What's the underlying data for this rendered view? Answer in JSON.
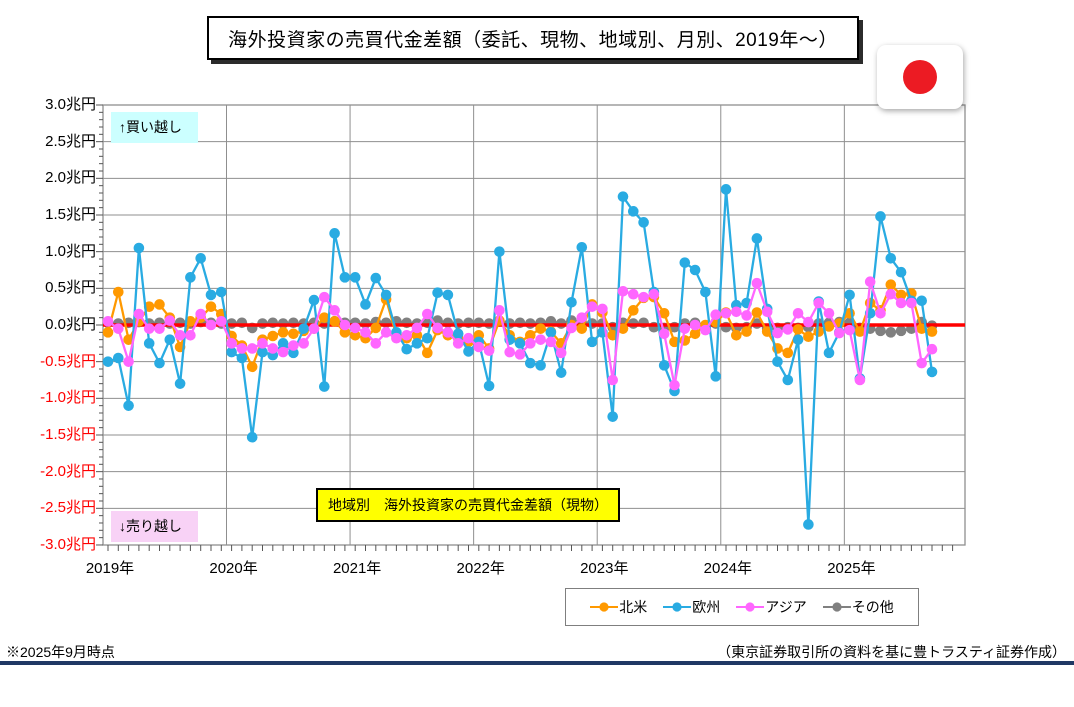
{
  "title_box": {
    "text": "海外投資家の売買代金差額（委託、現物、地域別、月別、2019年～）"
  },
  "flag": {
    "name": "japan-flag",
    "red": "#ec1b23"
  },
  "annotations": {
    "buy": "↑買い越し",
    "sell": "↓売り越し",
    "inner_label": "地域別　海外投資家の売買代金差額（現物）"
  },
  "footer": {
    "left": "※2025年9月時点",
    "right": "（東京証券取引所の資料を基に豊トラスティ証券作成）"
  },
  "chart_data": {
    "type": "line",
    "title": "海外投資家の売買代金差額（委託、現物、地域別、月別、2019年～）",
    "y_unit": "兆円",
    "ylim": [
      -3.0,
      3.0
    ],
    "y_tick_step": 0.5,
    "grid": true,
    "legend_position": "bottom",
    "x_start": "2019-01",
    "x_end": "2025-09",
    "x_tick_labels": [
      "2019年",
      "2020年",
      "2021年",
      "2022年",
      "2023年",
      "2024年",
      "2025年"
    ],
    "y_tick_labels": [
      "3.0兆円",
      "2.5兆円",
      "2.0兆円",
      "1.5兆円",
      "1.0兆円",
      "0.5兆円",
      "0.0兆円",
      "-0.5兆円",
      "-1.0兆円",
      "-1.5兆円",
      "-2.0兆円",
      "-2.5兆円",
      "-3.0兆円"
    ],
    "zero_line_color": "#ff0000",
    "grid_color": "#8f8f8f",
    "series": [
      {
        "name": "北米",
        "color": "#ff9900",
        "values": [
          -0.1,
          0.45,
          -0.2,
          0.05,
          0.25,
          0.28,
          0.1,
          -0.3,
          0.05,
          0.1,
          0.25,
          0.15,
          -0.15,
          -0.28,
          -0.57,
          -0.2,
          -0.15,
          -0.1,
          -0.12,
          -0.08,
          -0.05,
          0.1,
          0.05,
          -0.1,
          -0.14,
          -0.18,
          -0.04,
          0.35,
          -0.14,
          -0.18,
          -0.14,
          -0.38,
          -0.07,
          -0.14,
          -0.18,
          -0.23,
          -0.14,
          -0.32,
          0.06,
          -0.14,
          -0.23,
          -0.14,
          -0.05,
          -0.09,
          -0.25,
          0.0,
          -0.05,
          0.28,
          0.17,
          -0.14,
          -0.05,
          0.2,
          0.37,
          0.38,
          0.16,
          -0.23,
          -0.21,
          -0.12,
          0.0,
          0.04,
          0.17,
          -0.14,
          -0.09,
          0.17,
          -0.09,
          -0.32,
          -0.38,
          -0.06,
          -0.16,
          -0.09,
          -0.02,
          0.02,
          0.16,
          -0.09,
          0.3,
          0.2,
          0.55,
          0.41,
          0.43,
          -0.05,
          -0.09
        ]
      },
      {
        "name": "欧州",
        "color": "#29abe2",
        "values": [
          -0.5,
          -0.45,
          -1.1,
          1.05,
          -0.25,
          -0.52,
          -0.2,
          -0.8,
          0.65,
          0.91,
          0.41,
          0.45,
          -0.37,
          -0.45,
          -1.53,
          -0.37,
          -0.41,
          -0.25,
          -0.38,
          -0.05,
          0.34,
          -0.84,
          1.25,
          0.65,
          0.65,
          0.28,
          0.64,
          0.41,
          -0.1,
          -0.33,
          -0.25,
          -0.18,
          0.44,
          0.41,
          -0.12,
          -0.36,
          -0.23,
          -0.83,
          1.0,
          -0.2,
          -0.25,
          -0.52,
          -0.55,
          -0.1,
          -0.65,
          0.31,
          1.06,
          -0.23,
          -0.1,
          -1.25,
          1.75,
          1.55,
          1.4,
          0.45,
          -0.55,
          -0.9,
          0.85,
          0.75,
          0.45,
          -0.7,
          1.85,
          0.27,
          0.3,
          1.18,
          0.22,
          -0.5,
          -0.75,
          -0.2,
          -2.72,
          0.32,
          -0.38,
          -0.1,
          0.41,
          -0.73,
          0.16,
          1.48,
          0.91,
          0.72,
          0.33,
          0.33,
          -0.64
        ]
      },
      {
        "name": "アジア",
        "color": "#ff66ff",
        "values": [
          0.05,
          -0.05,
          -0.5,
          0.15,
          -0.05,
          -0.05,
          0.06,
          -0.14,
          -0.14,
          0.15,
          0.0,
          0.05,
          -0.25,
          -0.32,
          -0.32,
          -0.25,
          -0.32,
          -0.37,
          -0.28,
          -0.25,
          -0.05,
          0.38,
          0.2,
          0.0,
          -0.04,
          -0.1,
          -0.25,
          -0.1,
          -0.18,
          -0.14,
          -0.04,
          0.15,
          -0.04,
          -0.1,
          -0.25,
          -0.18,
          -0.3,
          -0.35,
          0.2,
          -0.37,
          -0.4,
          -0.25,
          -0.2,
          -0.23,
          -0.38,
          -0.04,
          0.1,
          0.25,
          0.22,
          -0.75,
          0.46,
          0.42,
          0.38,
          0.42,
          -0.12,
          -0.82,
          -0.05,
          0.0,
          -0.07,
          0.14,
          0.16,
          0.18,
          0.13,
          0.57,
          0.18,
          -0.11,
          -0.06,
          0.16,
          0.04,
          0.3,
          0.16,
          -0.11,
          -0.07,
          -0.75,
          0.59,
          0.16,
          0.42,
          0.3,
          0.3,
          -0.52,
          -0.33
        ]
      },
      {
        "name": "その他",
        "color": "#808080",
        "values": [
          0.03,
          0.02,
          0.03,
          0.04,
          0.02,
          0.03,
          0.02,
          0.03,
          0.02,
          0.04,
          0.03,
          0.02,
          0.02,
          0.03,
          -0.04,
          0.02,
          0.03,
          0.02,
          0.03,
          0.02,
          0.03,
          0.02,
          0.05,
          0.03,
          0.03,
          0.02,
          0.04,
          0.03,
          0.05,
          0.03,
          0.02,
          0.03,
          0.06,
          0.03,
          0.02,
          0.03,
          0.03,
          0.02,
          0.05,
          0.02,
          0.03,
          0.02,
          0.03,
          0.05,
          0.02,
          0.06,
          0.03,
          0.02,
          0.02,
          -0.03,
          0.03,
          0.02,
          0.03,
          -0.03,
          -0.04,
          -0.03,
          0.02,
          0.03,
          -0.03,
          0.02,
          -0.03,
          -0.04,
          -0.03,
          0.02,
          -0.05,
          -0.04,
          -0.03,
          -0.04,
          -0.03,
          0.02,
          0.03,
          0.04,
          0.03,
          -0.04,
          -0.05,
          -0.08,
          -0.1,
          -0.08,
          -0.05,
          0.04,
          -0.01
        ]
      }
    ]
  }
}
